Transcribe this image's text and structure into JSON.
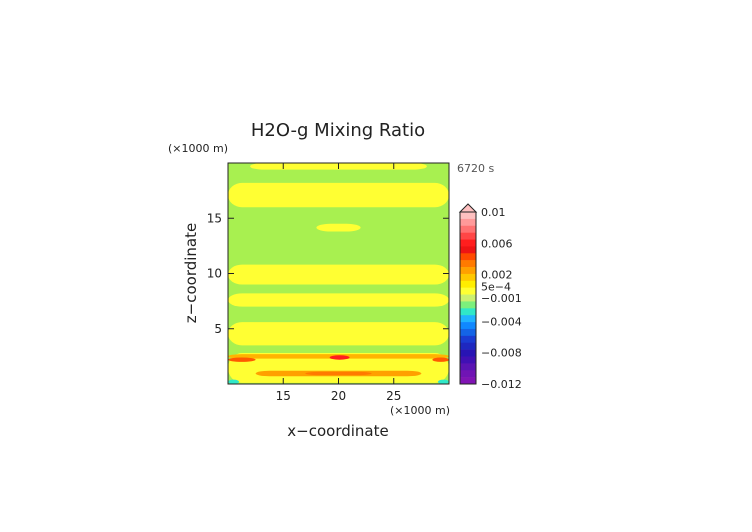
{
  "chart_data": {
    "type": "heatmap",
    "title": "H2O-g Mixing Ratio",
    "xlabel": "x−coordinate",
    "ylabel": "z−coordinate",
    "x_unit": "(×1000 m)",
    "y_unit": "(×1000 m)",
    "time_label": "6720 s",
    "xlim": [
      10,
      30
    ],
    "ylim": [
      0,
      20
    ],
    "x_ticks": [
      15,
      20,
      25
    ],
    "y_ticks": [
      5,
      10,
      15
    ],
    "grid": false,
    "legend": "right",
    "colorbar": {
      "min": -0.012,
      "max": 0.01,
      "levels": [
        {
          "value": 0.01,
          "color": "#ffc0c0"
        },
        {
          "value": 0.009,
          "color": "#ff9a9a"
        },
        {
          "value": 0.008,
          "color": "#ff7272"
        },
        {
          "value": 0.007,
          "color": "#ff4646"
        },
        {
          "value": 0.006,
          "color": "#ff1e1e"
        },
        {
          "value": 0.005,
          "color": "#ee1414"
        },
        {
          "value": 0.004,
          "color": "#ff4a00"
        },
        {
          "value": 0.003,
          "color": "#ff7a00"
        },
        {
          "value": 0.002,
          "color": "#ffa000"
        },
        {
          "value": 0.0015,
          "color": "#ffc800"
        },
        {
          "value": 0.001,
          "color": "#ffee00"
        },
        {
          "value": 0.0005,
          "color": "#ffff33"
        },
        {
          "value": 0.0,
          "color": "#ccf070"
        },
        {
          "value": -0.001,
          "color": "#7cf07c"
        },
        {
          "value": -0.002,
          "color": "#30e8c8"
        },
        {
          "value": -0.003,
          "color": "#20b4ff"
        },
        {
          "value": -0.004,
          "color": "#1088ff"
        },
        {
          "value": -0.005,
          "color": "#1464e6"
        },
        {
          "value": -0.006,
          "color": "#1a3cd2"
        },
        {
          "value": -0.007,
          "color": "#1e28c0"
        },
        {
          "value": -0.008,
          "color": "#2814b4"
        },
        {
          "value": -0.009,
          "color": "#4010b4"
        },
        {
          "value": -0.01,
          "color": "#5a14b4"
        },
        {
          "value": -0.011,
          "color": "#7014b4"
        },
        {
          "value": -0.012,
          "color": "#8014b4"
        }
      ],
      "labels": [
        "0.01",
        "0.006",
        "0.002",
        "5e−4",
        "−0.001",
        "−0.004",
        "−0.008",
        "−0.012"
      ]
    },
    "field": {
      "background": "#a8f050",
      "regions": [
        {
          "color": "#ffff33",
          "z": [
            19.4,
            20.0
          ],
          "x": [
            12,
            28
          ]
        },
        {
          "color": "#ffff33",
          "z": [
            16.0,
            18.2
          ],
          "x": [
            10,
            30
          ]
        },
        {
          "color": "#ffff33",
          "z": [
            13.8,
            14.5
          ],
          "x": [
            18,
            22
          ]
        },
        {
          "color": "#ffff33",
          "z": [
            9.0,
            10.8
          ],
          "x": [
            10,
            30
          ]
        },
        {
          "color": "#ffff33",
          "z": [
            7.0,
            8.2
          ],
          "x": [
            10,
            30
          ]
        },
        {
          "color": "#ffff33",
          "z": [
            3.5,
            5.6
          ],
          "x": [
            10,
            30
          ]
        },
        {
          "color": "#ffff33",
          "z": [
            0.1,
            2.8
          ],
          "x": [
            10,
            30
          ]
        },
        {
          "color": "#ffb400",
          "z": [
            2.3,
            2.7
          ],
          "x": [
            10,
            30
          ]
        },
        {
          "color": "#ff5a00",
          "z": [
            2.0,
            2.4
          ],
          "x": [
            10,
            12.5
          ]
        },
        {
          "color": "#ff5a00",
          "z": [
            2.0,
            2.4
          ],
          "x": [
            28.5,
            30
          ]
        },
        {
          "color": "#ff1e1e",
          "z": [
            2.2,
            2.6
          ],
          "x": [
            19.2,
            21
          ]
        },
        {
          "color": "#ffa000",
          "z": [
            0.7,
            1.2
          ],
          "x": [
            12.5,
            27.5
          ]
        },
        {
          "color": "#ff7a00",
          "z": [
            0.8,
            1.1
          ],
          "x": [
            17,
            23
          ]
        },
        {
          "color": "#30e8c8",
          "z": [
            0.0,
            0.4
          ],
          "x": [
            10,
            11
          ]
        },
        {
          "color": "#30e8c8",
          "z": [
            0.0,
            0.4
          ],
          "x": [
            29,
            30
          ]
        }
      ]
    }
  }
}
